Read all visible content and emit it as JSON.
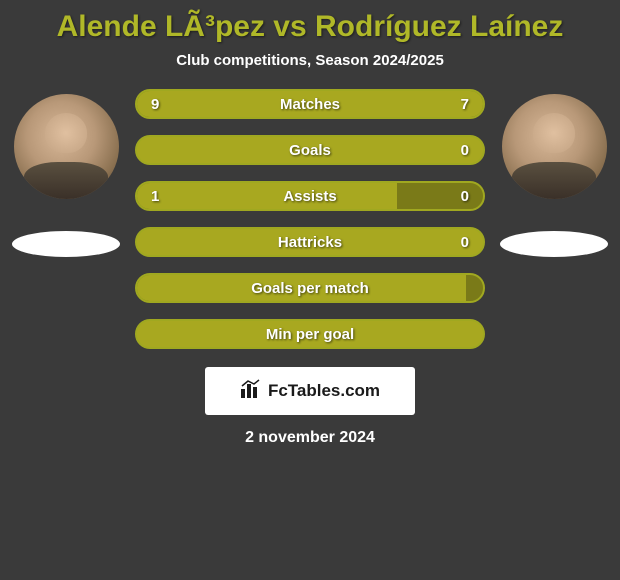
{
  "title": "Alende LÃ³pez vs Rodríguez Laínez",
  "subtitle": "Club competitions, Season 2024/2025",
  "colors": {
    "background": "#3a3a3a",
    "accent": "#b0b828",
    "bar_border": "#a0a820",
    "bar_fill_active": "#a8a820",
    "bar_bg_inactive": "#808018",
    "text": "#ffffff"
  },
  "stats": [
    {
      "label": "Matches",
      "left_value": "9",
      "right_value": "7",
      "left_pct": 56,
      "right_pct": 44,
      "left_color": "#a8a820",
      "right_color": "#a8a820",
      "bg_color": "#7a7a18",
      "border_color": "#a0a820"
    },
    {
      "label": "Goals",
      "left_value": "",
      "right_value": "0",
      "left_pct": 100,
      "right_pct": 0,
      "left_color": "#a8a820",
      "right_color": "#a8a820",
      "bg_color": "#a8a820",
      "border_color": "#a0a820"
    },
    {
      "label": "Assists",
      "left_value": "1",
      "right_value": "0",
      "left_pct": 75,
      "right_pct": 0,
      "left_color": "#a8a820",
      "right_color": "#a8a820",
      "bg_color": "#7a7a18",
      "border_color": "#a0a820"
    },
    {
      "label": "Hattricks",
      "left_value": "",
      "right_value": "0",
      "left_pct": 100,
      "right_pct": 0,
      "left_color": "#a8a820",
      "right_color": "#a8a820",
      "bg_color": "#a8a820",
      "border_color": "#a0a820"
    },
    {
      "label": "Goals per match",
      "left_value": "",
      "right_value": "",
      "left_pct": 95,
      "right_pct": 0,
      "left_color": "#a8a820",
      "right_color": "#a8a820",
      "bg_color": "#7a7a18",
      "border_color": "#a0a820"
    },
    {
      "label": "Min per goal",
      "left_value": "",
      "right_value": "",
      "left_pct": 100,
      "right_pct": 0,
      "left_color": "#a8a820",
      "right_color": "#a8a820",
      "bg_color": "#a8a820",
      "border_color": "#a0a820"
    }
  ],
  "logo": {
    "icon": "📊",
    "text": "FcTables.com"
  },
  "date": "2 november 2024"
}
